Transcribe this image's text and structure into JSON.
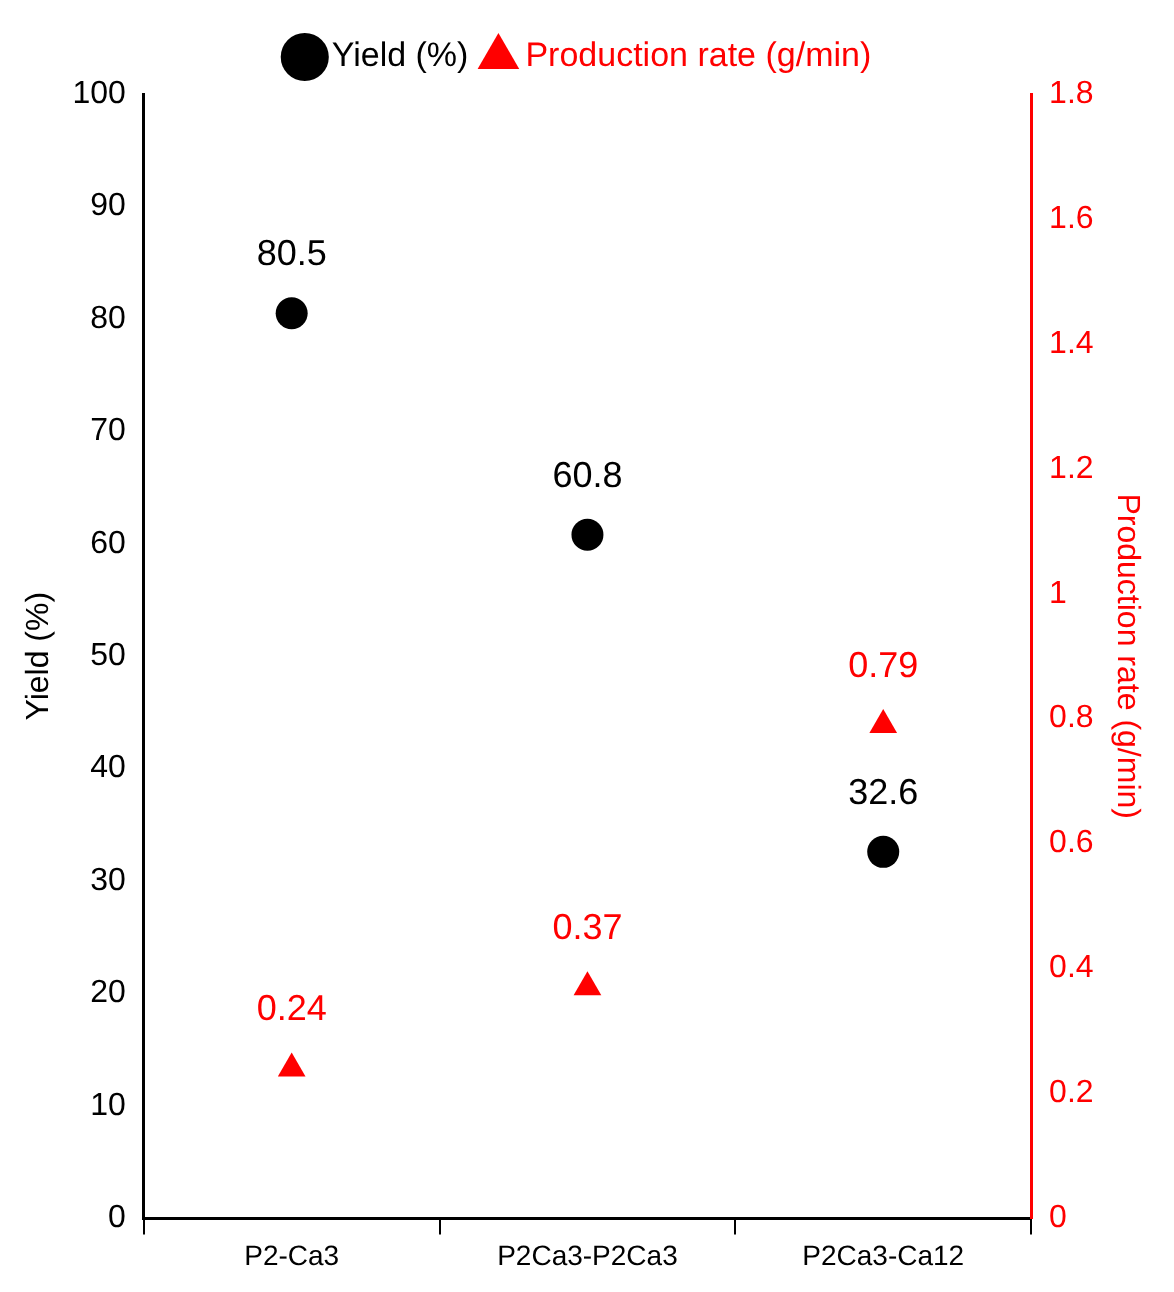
{
  "chart_data": {
    "type": "scatter",
    "categories": [
      "P2-Ca3",
      "P2Ca3-P2Ca3",
      "P2Ca3-Ca12"
    ],
    "ylabel": "Yield (%)",
    "y2label": "Production rate (g/min)",
    "ylim": [
      0,
      100
    ],
    "yticks": [
      0,
      10,
      20,
      30,
      40,
      50,
      60,
      70,
      80,
      90,
      100
    ],
    "y2lim": [
      0,
      1.8
    ],
    "y2ticks": [
      0,
      0.2,
      0.4,
      0.6,
      0.8,
      1,
      1.2,
      1.4,
      1.6,
      1.8
    ],
    "series": [
      {
        "name": "Yield (%)",
        "color": "#000000",
        "marker": "circle",
        "values": [
          80.5,
          60.8,
          32.6
        ]
      },
      {
        "name": "Production rate (g/min)",
        "color": "#ff0000",
        "marker": "triangle",
        "axis": "y2",
        "values": [
          0.24,
          0.37,
          0.79
        ]
      }
    ],
    "data_labels": true,
    "legend": "top",
    "grid": false
  }
}
